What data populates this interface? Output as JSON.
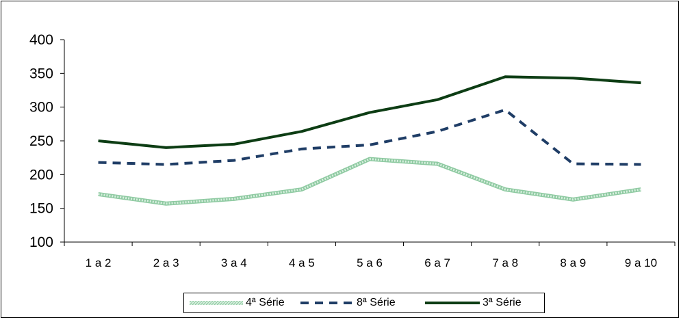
{
  "chart_data": {
    "type": "line",
    "categories": [
      "1 a 2",
      "2 a 3",
      "3 a 4",
      "4 a 5",
      "5 a 6",
      "6 a 7",
      "7 a 8",
      "8 a 9",
      "9 a 10"
    ],
    "ylim": [
      100,
      400
    ],
    "yticks": [
      100,
      150,
      200,
      250,
      300,
      350,
      400
    ],
    "grid": false,
    "legend_position": "bottom",
    "series": [
      {
        "name": "4ª Série",
        "color": "#a8d8b8",
        "style": "hatched",
        "values": [
          171,
          157,
          164,
          178,
          223,
          216,
          178,
          163,
          178
        ]
      },
      {
        "name": "8ª Série",
        "color": "#1f3d66",
        "style": "dashed",
        "values": [
          218,
          215,
          221,
          238,
          244,
          264,
          296,
          216,
          215
        ]
      },
      {
        "name": "3ª Série",
        "color": "#0d3d14",
        "style": "solid",
        "values": [
          250,
          240,
          245,
          264,
          292,
          311,
          345,
          343,
          336
        ]
      }
    ]
  }
}
